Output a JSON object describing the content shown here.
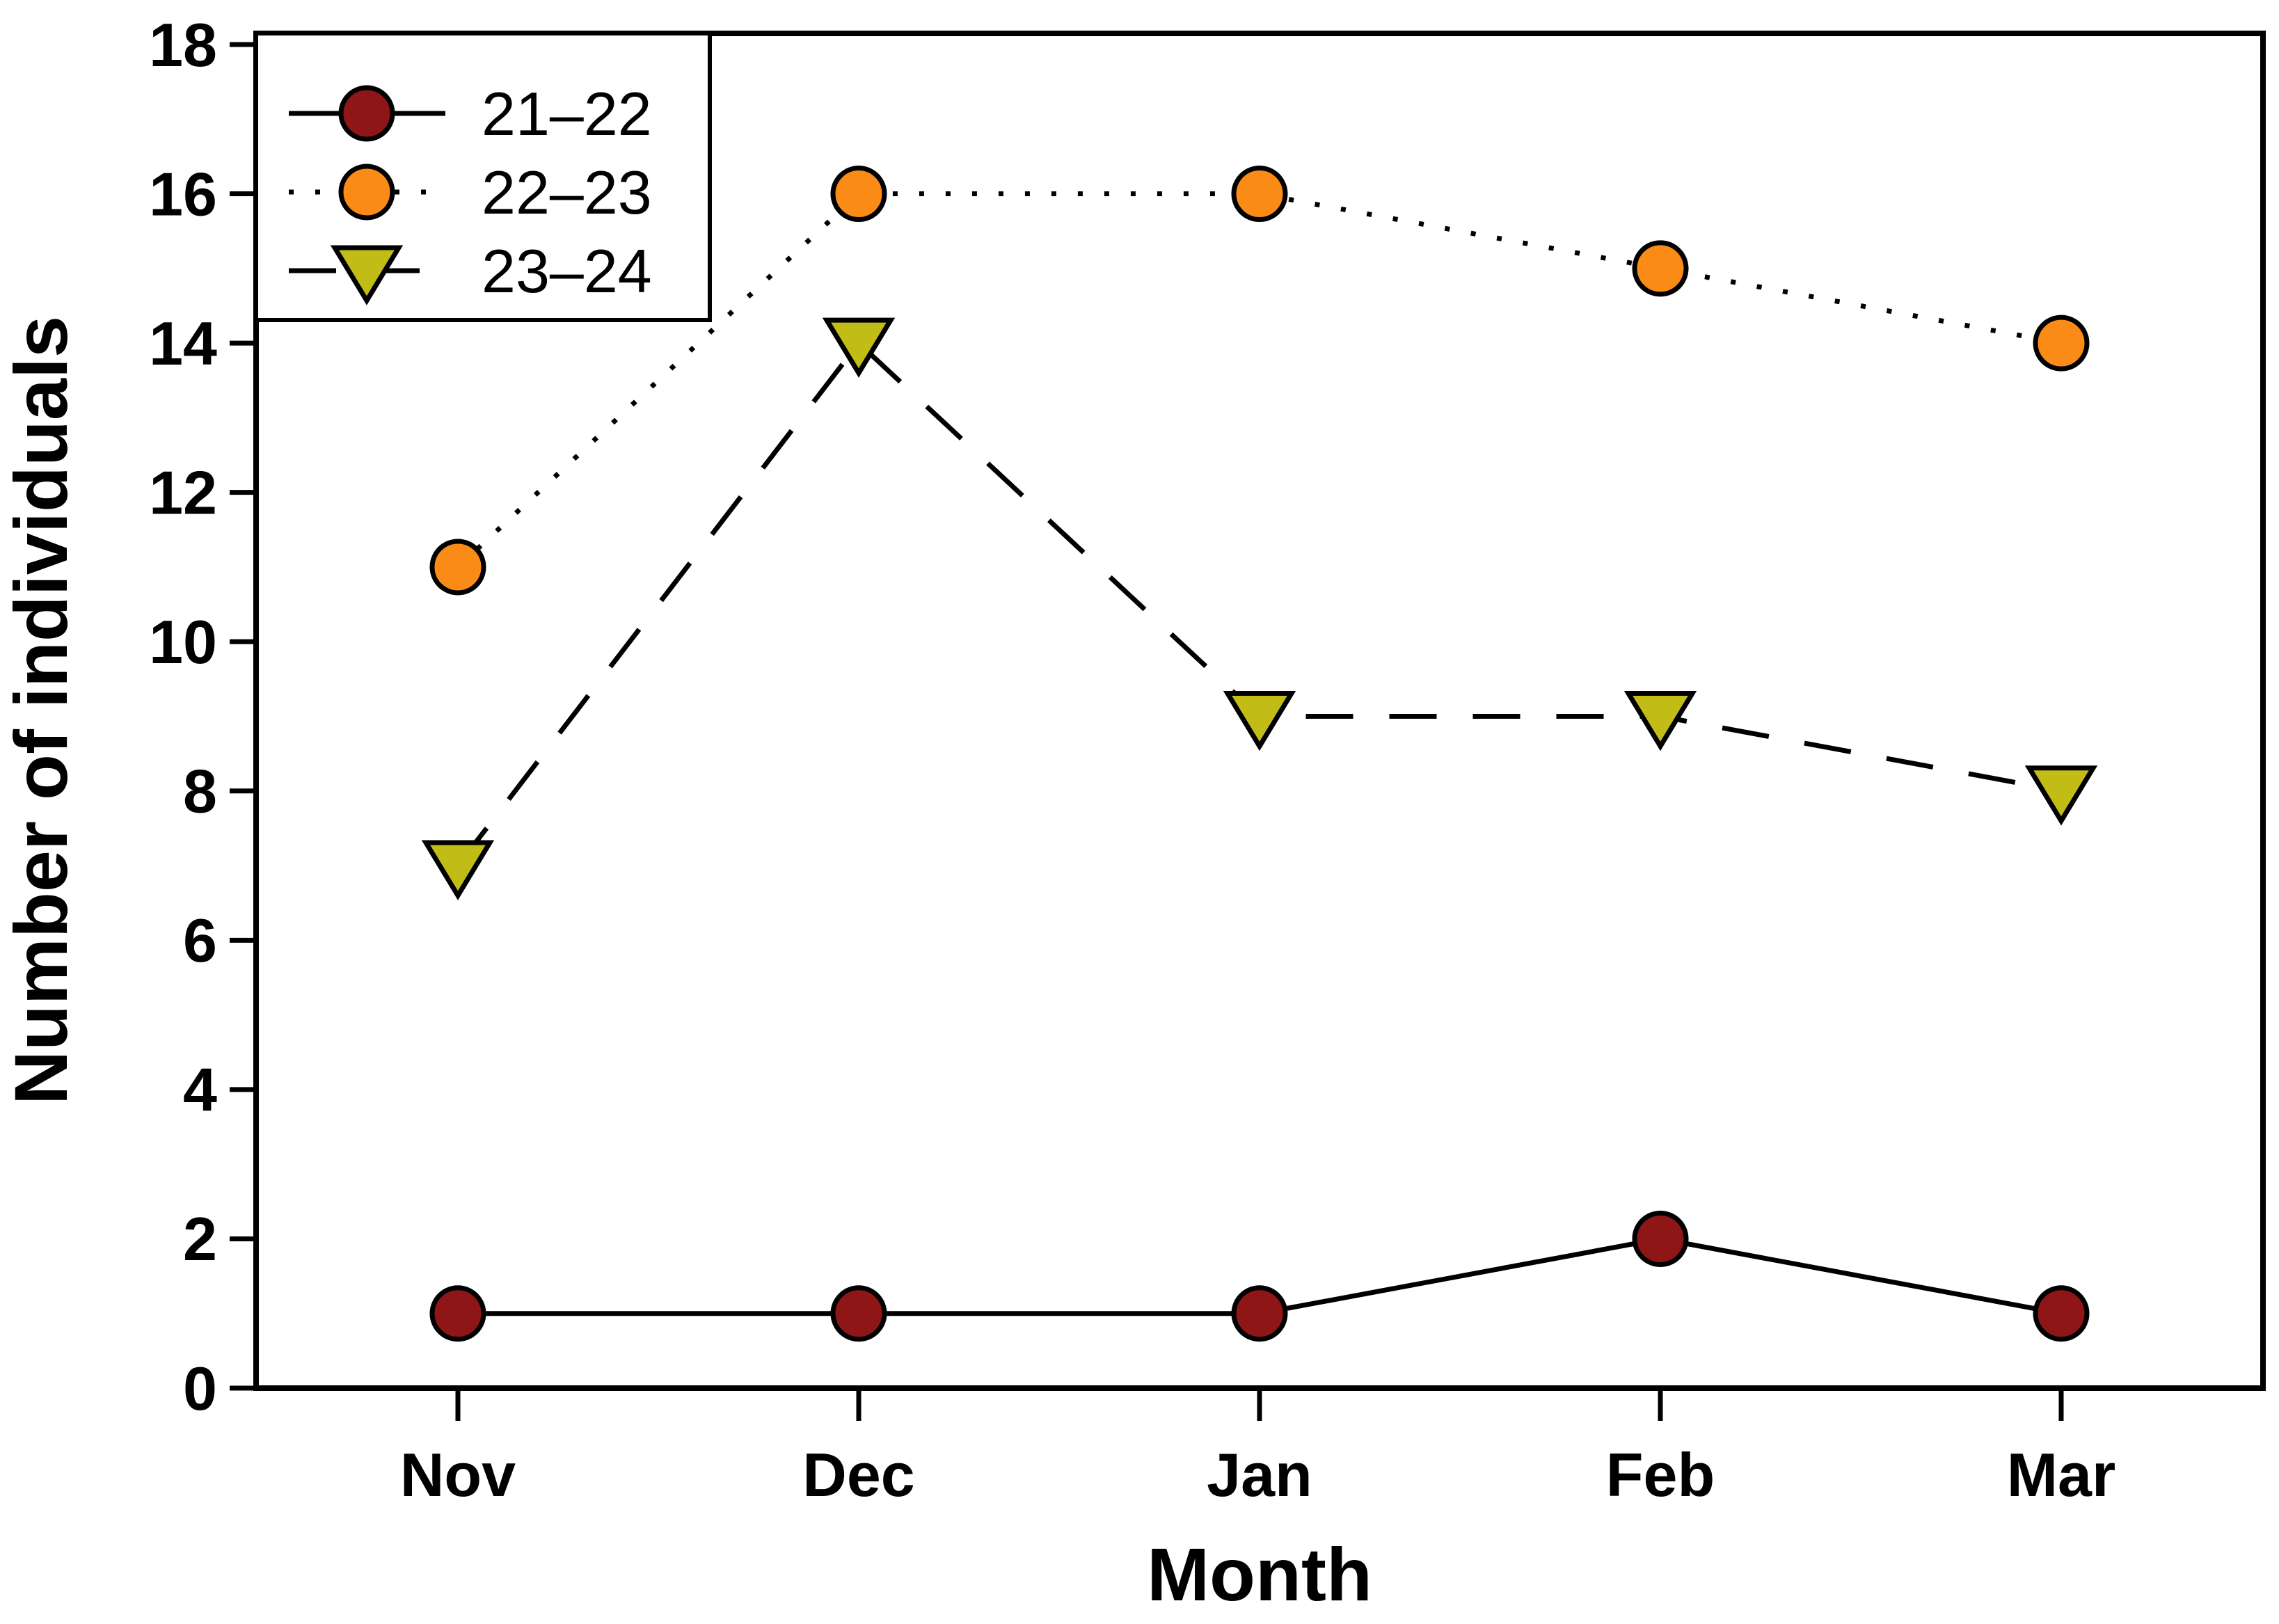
{
  "figure": {
    "background": "#ffffff",
    "frame_color": "#000000",
    "text_color": "#000000"
  },
  "chart_data": {
    "type": "line",
    "title": "",
    "xlabel": "Month",
    "ylabel": "Number of individuals",
    "categories": [
      "Nov",
      "Dec",
      "Jan",
      "Feb",
      "Mar"
    ],
    "ylim": [
      0,
      18
    ],
    "yticks": [
      0,
      2,
      4,
      6,
      8,
      10,
      12,
      14,
      16,
      18
    ],
    "grid": false,
    "legend": {
      "position": "top-left",
      "border": true,
      "background": "#ffffff"
    },
    "series": [
      {
        "name": "21–22",
        "marker": "circle",
        "marker_color": "#8e1616",
        "line_style": "solid",
        "line_color": "#000000",
        "values": [
          1,
          1,
          1,
          2,
          1
        ]
      },
      {
        "name": "22–23",
        "marker": "circle",
        "marker_color": "#fb8b17",
        "line_style": "dotted",
        "line_color": "#000000",
        "values": [
          11,
          16,
          16,
          15,
          14
        ]
      },
      {
        "name": "23–24",
        "marker": "triangle-down",
        "marker_color": "#c2bd16",
        "line_style": "dashed",
        "line_color": "#000000",
        "values": [
          7,
          14,
          9,
          9,
          8
        ]
      }
    ]
  }
}
